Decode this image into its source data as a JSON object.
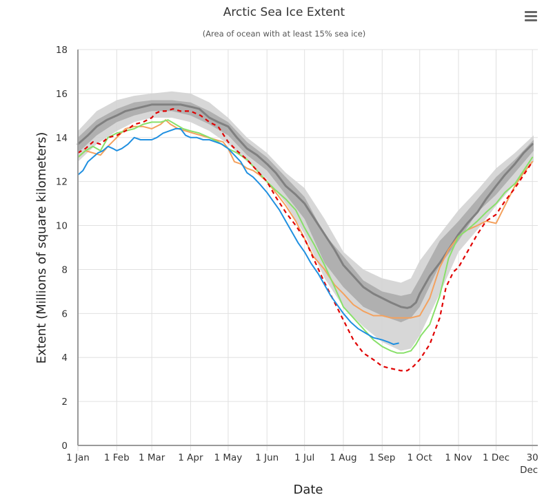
{
  "header": {
    "title": "Arctic Sea Ice Extent",
    "subtitle": "(Area of ocean with at least 15% sea ice)",
    "menu_icon": "hamburger-menu-icon"
  },
  "colors": {
    "median": "#808080",
    "iqr_band": "#a9a9a9",
    "idr_band": "#d3d3d3",
    "current_year": "#1f8fe0",
    "record_low": "#e00000",
    "orange_year": "#f4a15d",
    "green_year": "#88e06a",
    "grid": "#e0e0e0",
    "axis": "#999999"
  },
  "chart_data": {
    "type": "line",
    "title": "Arctic Sea Ice Extent",
    "subtitle": "(Area of ocean with at least 15% sea ice)",
    "xlabel": "Date",
    "ylabel": "Extent (Millions of square kilometers)",
    "ylim": [
      0,
      18
    ],
    "xlim_day_of_year": [
      0,
      364
    ],
    "grid": true,
    "y_ticks": [
      "0",
      "2",
      "4",
      "6",
      "8",
      "10",
      "12",
      "14",
      "16",
      "18"
    ],
    "y_tick_values": [
      0,
      2,
      4,
      6,
      8,
      10,
      12,
      14,
      16,
      18
    ],
    "x_ticks": [
      {
        "day": 0,
        "label": "1 Jan"
      },
      {
        "day": 31,
        "label": "1 Feb"
      },
      {
        "day": 59,
        "label": "1 Mar"
      },
      {
        "day": 90,
        "label": "1 Apr"
      },
      {
        "day": 120,
        "label": "1 May"
      },
      {
        "day": 151,
        "label": "1 Jun"
      },
      {
        "day": 181,
        "label": "1 Jul"
      },
      {
        "day": 212,
        "label": "1 Aug"
      },
      {
        "day": 243,
        "label": "1 Sep"
      },
      {
        "day": 273,
        "label": "1 Oct"
      },
      {
        "day": 304,
        "label": "1 Nov"
      },
      {
        "day": 334,
        "label": "1 Dec"
      },
      {
        "day": 363,
        "label": "30",
        "label2": "Dec"
      }
    ],
    "bands": [
      {
        "name": "interdecile-range",
        "x": [
          0,
          15,
          31,
          45,
          59,
          75,
          90,
          105,
          120,
          135,
          151,
          166,
          181,
          197,
          212,
          228,
          243,
          258,
          266,
          273,
          289,
          304,
          319,
          334,
          349,
          364
        ],
        "low": [
          12.9,
          13.7,
          14.3,
          14.7,
          14.9,
          14.9,
          14.7,
          14.3,
          13.7,
          12.9,
          12.1,
          11.0,
          9.6,
          7.6,
          6.3,
          5.4,
          4.7,
          4.3,
          4.4,
          5.0,
          6.9,
          8.8,
          9.8,
          10.9,
          11.9,
          12.9
        ],
        "high": [
          14.3,
          15.2,
          15.7,
          15.9,
          16.0,
          16.1,
          16.0,
          15.6,
          14.9,
          14.0,
          13.3,
          12.4,
          11.7,
          10.3,
          8.8,
          8.0,
          7.6,
          7.4,
          7.6,
          8.4,
          9.6,
          10.7,
          11.6,
          12.6,
          13.3,
          14.1
        ]
      },
      {
        "name": "interquartile-range",
        "x": [
          0,
          15,
          31,
          45,
          59,
          75,
          90,
          105,
          120,
          135,
          151,
          166,
          181,
          197,
          212,
          228,
          243,
          258,
          266,
          273,
          289,
          304,
          319,
          334,
          349,
          364
        ],
        "low": [
          13.3,
          14.1,
          14.7,
          15.0,
          15.2,
          15.2,
          15.0,
          14.6,
          14.1,
          13.2,
          12.5,
          11.4,
          10.3,
          8.3,
          7.2,
          6.3,
          5.9,
          5.6,
          5.8,
          6.3,
          8.2,
          9.3,
          10.6,
          11.4,
          12.4,
          13.4
        ],
        "high": [
          14.0,
          14.8,
          15.3,
          15.6,
          15.7,
          15.7,
          15.6,
          15.2,
          14.7,
          13.8,
          13.1,
          12.2,
          11.3,
          9.6,
          8.6,
          7.5,
          7.0,
          6.8,
          6.9,
          7.6,
          9.3,
          10.2,
          11.2,
          12.2,
          13.0,
          13.9
        ]
      }
    ],
    "series": [
      {
        "name": "median",
        "style": "solid-thick",
        "x": [
          0,
          8,
          15,
          23,
          31,
          38,
          45,
          52,
          59,
          67,
          75,
          82,
          90,
          97,
          105,
          112,
          120,
          127,
          135,
          143,
          151,
          158,
          166,
          174,
          181,
          189,
          197,
          205,
          212,
          220,
          228,
          236,
          243,
          250,
          258,
          263,
          266,
          270,
          273,
          281,
          289,
          296,
          304,
          311,
          319,
          326,
          334,
          341,
          349,
          356,
          363
        ],
        "values": [
          13.7,
          14.1,
          14.5,
          14.8,
          15.0,
          15.2,
          15.3,
          15.4,
          15.5,
          15.5,
          15.5,
          15.5,
          15.4,
          15.3,
          14.9,
          14.7,
          14.5,
          14.0,
          13.5,
          13.2,
          12.8,
          12.4,
          11.8,
          11.4,
          11.0,
          10.3,
          9.6,
          8.9,
          8.2,
          7.7,
          7.2,
          6.9,
          6.7,
          6.5,
          6.3,
          6.25,
          6.3,
          6.5,
          6.9,
          7.7,
          8.3,
          8.9,
          9.6,
          10.1,
          10.6,
          11.2,
          11.8,
          12.3,
          12.8,
          13.3,
          13.7
        ]
      },
      {
        "name": "current-year",
        "style": "solid",
        "x": [
          0,
          4,
          8,
          12,
          16,
          20,
          24,
          28,
          31,
          35,
          40,
          45,
          50,
          55,
          59,
          63,
          68,
          73,
          78,
          82,
          86,
          90,
          95,
          100,
          105,
          110,
          115,
          120,
          125,
          130,
          135,
          140,
          145,
          151,
          156,
          161,
          166,
          171,
          176,
          181,
          186,
          192,
          197,
          202,
          207,
          212,
          218,
          224,
          230,
          236,
          243,
          248,
          252,
          256
        ],
        "values": [
          12.3,
          12.5,
          12.9,
          13.1,
          13.3,
          13.4,
          13.6,
          13.5,
          13.4,
          13.5,
          13.7,
          14.0,
          13.9,
          13.9,
          13.9,
          14.0,
          14.2,
          14.3,
          14.4,
          14.4,
          14.1,
          14.0,
          14.0,
          13.9,
          13.9,
          13.8,
          13.7,
          13.5,
          13.2,
          12.9,
          12.4,
          12.2,
          11.9,
          11.5,
          11.1,
          10.7,
          10.2,
          9.7,
          9.2,
          8.8,
          8.3,
          7.8,
          7.3,
          6.8,
          6.4,
          6.0,
          5.6,
          5.3,
          5.1,
          4.9,
          4.8,
          4.7,
          4.6,
          4.65
        ]
      },
      {
        "name": "orange-year",
        "style": "solid",
        "x": [
          0,
          6,
          12,
          18,
          24,
          31,
          38,
          45,
          52,
          59,
          66,
          70,
          74,
          80,
          86,
          92,
          98,
          104,
          110,
          116,
          120,
          125,
          130,
          135,
          140,
          145,
          151,
          158,
          166,
          174,
          181,
          188,
          197,
          205,
          212,
          220,
          228,
          236,
          243,
          250,
          258,
          266,
          273,
          281,
          289,
          296,
          304,
          311,
          319,
          326,
          334,
          341,
          349,
          356,
          363
        ],
        "values": [
          13.1,
          13.4,
          13.3,
          13.2,
          13.6,
          14.0,
          14.4,
          14.5,
          14.5,
          14.4,
          14.6,
          14.8,
          14.6,
          14.4,
          14.3,
          14.2,
          14.1,
          14.0,
          13.9,
          13.8,
          13.5,
          12.9,
          12.8,
          12.6,
          12.5,
          12.3,
          12.0,
          11.5,
          10.9,
          10.2,
          9.4,
          8.6,
          8.0,
          7.3,
          6.9,
          6.4,
          6.1,
          5.9,
          5.9,
          5.8,
          5.8,
          5.8,
          5.9,
          6.7,
          8.1,
          8.9,
          9.5,
          9.8,
          10.0,
          10.2,
          10.1,
          10.9,
          11.8,
          12.4,
          12.9
        ]
      },
      {
        "name": "green-year",
        "style": "solid",
        "x": [
          0,
          6,
          12,
          18,
          24,
          31,
          38,
          45,
          52,
          59,
          66,
          72,
          78,
          84,
          90,
          97,
          105,
          112,
          120,
          127,
          135,
          143,
          151,
          158,
          166,
          174,
          181,
          189,
          197,
          205,
          212,
          220,
          228,
          236,
          243,
          250,
          255,
          260,
          266,
          270,
          274,
          281,
          289,
          296,
          304,
          311,
          319,
          326,
          334,
          341,
          349,
          356,
          363
        ],
        "values": [
          13.1,
          13.4,
          13.6,
          13.4,
          14.0,
          14.2,
          14.3,
          14.4,
          14.6,
          14.7,
          14.7,
          14.8,
          14.6,
          14.4,
          14.3,
          14.2,
          14.0,
          13.8,
          13.5,
          13.3,
          13.0,
          12.5,
          12.0,
          11.6,
          11.2,
          10.7,
          9.9,
          9.1,
          8.2,
          7.2,
          6.3,
          5.8,
          5.3,
          4.8,
          4.5,
          4.3,
          4.2,
          4.2,
          4.3,
          4.6,
          5.0,
          5.5,
          6.8,
          8.5,
          9.5,
          9.8,
          10.2,
          10.6,
          11.0,
          11.5,
          11.9,
          12.5,
          13.1
        ]
      },
      {
        "name": "record-low-year",
        "style": "dashed",
        "x": [
          0,
          6,
          12,
          18,
          24,
          31,
          38,
          45,
          52,
          59,
          62,
          66,
          70,
          76,
          82,
          90,
          98,
          105,
          112,
          120,
          127,
          135,
          143,
          151,
          158,
          166,
          174,
          181,
          189,
          197,
          205,
          212,
          220,
          228,
          236,
          243,
          250,
          258,
          263,
          268,
          273,
          281,
          289,
          294,
          300,
          304,
          311,
          319,
          326,
          334,
          341,
          349,
          356,
          363
        ],
        "values": [
          13.3,
          13.5,
          13.8,
          13.7,
          14.0,
          14.1,
          14.3,
          14.6,
          14.7,
          14.9,
          15.1,
          15.2,
          15.2,
          15.3,
          15.2,
          15.2,
          15.0,
          14.7,
          14.5,
          13.8,
          13.4,
          13.0,
          12.5,
          12.0,
          11.3,
          10.6,
          10.0,
          9.4,
          8.4,
          7.4,
          6.5,
          5.7,
          4.8,
          4.2,
          3.9,
          3.6,
          3.5,
          3.4,
          3.4,
          3.6,
          3.9,
          4.6,
          5.8,
          7.2,
          7.9,
          8.1,
          8.8,
          9.6,
          10.2,
          10.5,
          11.1,
          11.7,
          12.3,
          12.9
        ]
      }
    ]
  }
}
